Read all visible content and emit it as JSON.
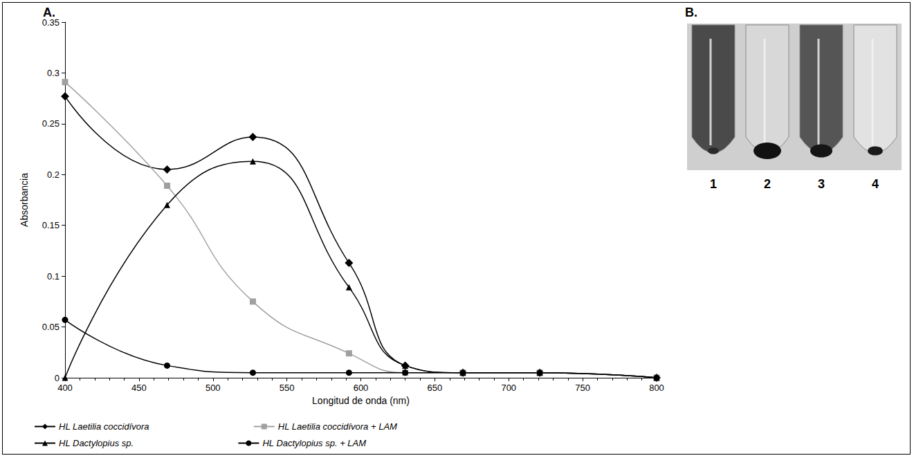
{
  "chart_data": {
    "type": "line",
    "panel_label": "A.",
    "x_label": "Longitud de onda (nm)",
    "y_label": "Absorbancia",
    "xlim": [
      400,
      800
    ],
    "xticks": [
      400,
      450,
      500,
      550,
      600,
      650,
      700,
      750,
      800
    ],
    "ylim": [
      0,
      0.35
    ],
    "yticks": [
      0,
      0.05,
      0.1,
      0.15,
      0.2,
      0.25,
      0.3,
      0.35
    ],
    "grid": false,
    "legend": "bottom",
    "line_style": "smooth",
    "series": [
      {
        "name": "HL Laetilia coccidívora",
        "color": "#000000",
        "marker": "diamond",
        "x": [
          400,
          469,
          527,
          592,
          630,
          669,
          721,
          800
        ],
        "values": [
          0.277,
          0.205,
          0.237,
          0.113,
          0.012,
          0.005,
          0.005,
          0
        ]
      },
      {
        "name": "HL Laetilia coccidívora + LAM",
        "color": "#a0a0a0",
        "marker": "square",
        "x": [
          400,
          469,
          527,
          592,
          630,
          669,
          721,
          800
        ],
        "values": [
          0.291,
          0.189,
          0.075,
          0.024,
          0.005,
          0.005,
          0.005,
          0
        ]
      },
      {
        "name": "HL Dactylopius sp.",
        "color": "#000000",
        "marker": "triangle",
        "x": [
          400,
          469,
          527,
          592,
          630,
          669,
          721,
          800
        ],
        "values": [
          0,
          0.17,
          0.213,
          0.089,
          0.012,
          0.005,
          0.005,
          0
        ]
      },
      {
        "name": "HL Dactylopius sp. + LAM",
        "color": "#000000",
        "marker": "circle",
        "x": [
          400,
          469,
          527,
          592,
          630,
          669,
          721,
          800
        ],
        "values": [
          0.057,
          0.012,
          0.005,
          0.005,
          0.005,
          0.005,
          0.005,
          0
        ]
      }
    ]
  },
  "panel_b": {
    "label": "B.",
    "tube_labels": [
      "1",
      "2",
      "3",
      "4"
    ]
  }
}
